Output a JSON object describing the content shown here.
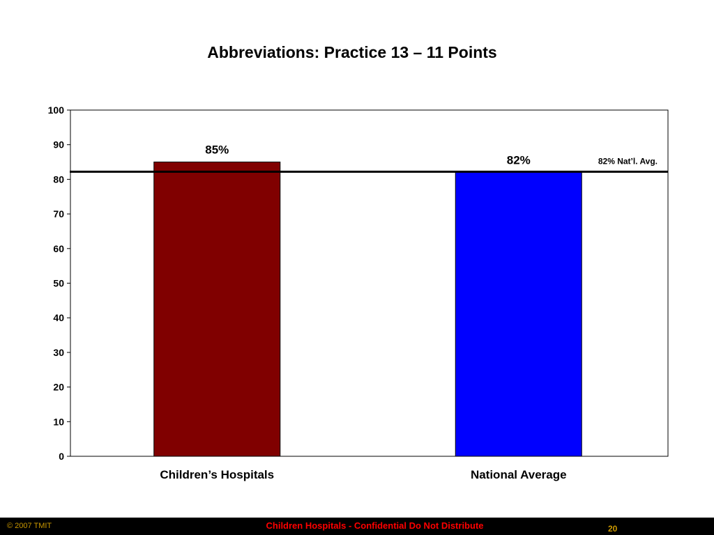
{
  "slide": {
    "title": "Abbreviations: Practice 13 – 11 Points"
  },
  "chart_data": {
    "type": "bar",
    "title": "Abbreviations: Practice 13 – 11 Points",
    "categories": [
      "Children’s Hospitals",
      "National Average"
    ],
    "values": [
      85,
      82
    ],
    "data_labels": [
      "85%",
      "82%"
    ],
    "bar_colors": [
      "#800000",
      "#0000ff"
    ],
    "ylim": [
      0,
      100
    ],
    "yticks": [
      0,
      10,
      20,
      30,
      40,
      50,
      60,
      70,
      80,
      90,
      100
    ],
    "grid": false,
    "reference_line": {
      "value": 82,
      "label": "82% Nat’l. Avg."
    }
  },
  "footer": {
    "copyright": "© 2007 TMIT",
    "notice": "Children Hospitals - Confidential Do Not Distribute",
    "page_number": "20",
    "bar_color": "#000000",
    "accent_color": "#cc9900",
    "notice_color": "#ff0000"
  }
}
